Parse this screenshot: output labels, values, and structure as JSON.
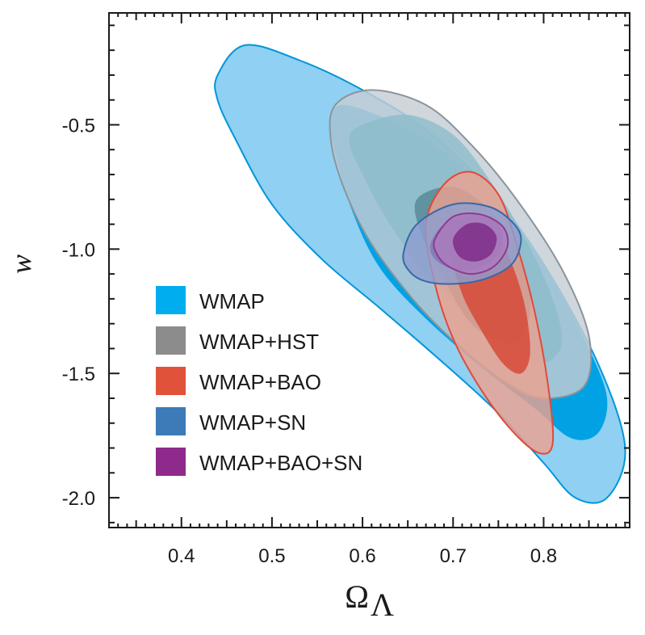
{
  "chart_data": {
    "type": "contour",
    "title": "",
    "xlabel": "Ω",
    "xlabel_subscript": "Λ",
    "ylabel": "w",
    "xlim": [
      0.32,
      0.895
    ],
    "ylim": [
      -2.12,
      -0.05
    ],
    "xticks": [
      "0.4",
      "0.5",
      "0.6",
      "0.7",
      "0.8"
    ],
    "xtick_values": [
      0.4,
      0.5,
      0.6,
      0.7,
      0.8
    ],
    "yticks": [
      "-0.5",
      "-1.0",
      "-1.5",
      "-2.0"
    ],
    "ytick_values": [
      -0.5,
      -1.0,
      -1.5,
      -2.0
    ],
    "legend_position": "lower-left",
    "series": [
      {
        "name": "WMAP",
        "swatch": "#00aeef",
        "outer_color": "#8fd0f3",
        "inner_color": "#00a2e3",
        "stroke": "#0096d8",
        "outer": [
          [
            0.44,
            -0.3
          ],
          [
            0.47,
            -0.18
          ],
          [
            0.53,
            -0.24
          ],
          [
            0.6,
            -0.36
          ],
          [
            0.67,
            -0.52
          ],
          [
            0.74,
            -0.76
          ],
          [
            0.8,
            -1.06
          ],
          [
            0.86,
            -1.46
          ],
          [
            0.89,
            -1.8
          ],
          [
            0.87,
            -2.0
          ],
          [
            0.835,
            -2.0
          ],
          [
            0.8,
            -1.86
          ],
          [
            0.75,
            -1.66
          ],
          [
            0.69,
            -1.46
          ],
          [
            0.62,
            -1.24
          ],
          [
            0.555,
            -1.04
          ],
          [
            0.5,
            -0.82
          ],
          [
            0.46,
            -0.56
          ],
          [
            0.44,
            -0.4
          ]
        ],
        "inner": [
          [
            0.58,
            -0.42
          ],
          [
            0.64,
            -0.5
          ],
          [
            0.7,
            -0.64
          ],
          [
            0.76,
            -0.86
          ],
          [
            0.81,
            -1.12
          ],
          [
            0.85,
            -1.4
          ],
          [
            0.87,
            -1.6
          ],
          [
            0.86,
            -1.74
          ],
          [
            0.83,
            -1.76
          ],
          [
            0.79,
            -1.64
          ],
          [
            0.73,
            -1.47
          ],
          [
            0.67,
            -1.28
          ],
          [
            0.62,
            -1.08
          ],
          [
            0.59,
            -0.86
          ],
          [
            0.57,
            -0.62
          ],
          [
            0.565,
            -0.48
          ]
        ]
      },
      {
        "name": "WMAP+HST",
        "swatch": "#8c8c8c",
        "outer_color": "#c4cdd4",
        "inner_color": "#8dbcca",
        "stroke": "#8b949c",
        "outer": [
          [
            0.57,
            -0.42
          ],
          [
            0.61,
            -0.36
          ],
          [
            0.67,
            -0.42
          ],
          [
            0.72,
            -0.58
          ],
          [
            0.77,
            -0.8
          ],
          [
            0.82,
            -1.08
          ],
          [
            0.85,
            -1.35
          ],
          [
            0.845,
            -1.55
          ],
          [
            0.8,
            -1.6
          ],
          [
            0.76,
            -1.54
          ],
          [
            0.71,
            -1.4
          ],
          [
            0.66,
            -1.22
          ],
          [
            0.61,
            -0.98
          ],
          [
            0.58,
            -0.76
          ],
          [
            0.565,
            -0.56
          ]
        ],
        "inner": [
          [
            0.6,
            -0.5
          ],
          [
            0.65,
            -0.46
          ],
          [
            0.7,
            -0.54
          ],
          [
            0.74,
            -0.72
          ],
          [
            0.78,
            -0.96
          ],
          [
            0.81,
            -1.2
          ],
          [
            0.82,
            -1.38
          ],
          [
            0.8,
            -1.46
          ],
          [
            0.77,
            -1.42
          ],
          [
            0.72,
            -1.28
          ],
          [
            0.67,
            -1.1
          ],
          [
            0.63,
            -0.9
          ],
          [
            0.6,
            -0.7
          ],
          [
            0.585,
            -0.56
          ]
        ],
        "core_color": "#5b8d9b",
        "core": [
          [
            0.66,
            -0.8
          ],
          [
            0.7,
            -0.75
          ],
          [
            0.74,
            -0.84
          ],
          [
            0.77,
            -1.0
          ],
          [
            0.785,
            -1.18
          ],
          [
            0.78,
            -1.33
          ],
          [
            0.76,
            -1.38
          ],
          [
            0.72,
            -1.3
          ],
          [
            0.69,
            -1.12
          ],
          [
            0.665,
            -0.94
          ]
        ]
      },
      {
        "name": "WMAP+BAO",
        "swatch": "#e0533a",
        "outer_color": "#eba190",
        "inner_color": "#d74634",
        "stroke": "#e04a39",
        "outer": [
          [
            0.67,
            -0.9
          ],
          [
            0.69,
            -0.74
          ],
          [
            0.72,
            -0.69
          ],
          [
            0.75,
            -0.78
          ],
          [
            0.77,
            -0.98
          ],
          [
            0.79,
            -1.25
          ],
          [
            0.805,
            -1.55
          ],
          [
            0.81,
            -1.78
          ],
          [
            0.795,
            -1.82
          ],
          [
            0.765,
            -1.73
          ],
          [
            0.73,
            -1.56
          ],
          [
            0.7,
            -1.36
          ],
          [
            0.68,
            -1.14
          ]
        ],
        "inner": [
          [
            0.7,
            -1.02
          ],
          [
            0.72,
            -0.9
          ],
          [
            0.745,
            -0.92
          ],
          [
            0.765,
            -1.06
          ],
          [
            0.78,
            -1.24
          ],
          [
            0.785,
            -1.42
          ],
          [
            0.775,
            -1.5
          ],
          [
            0.755,
            -1.46
          ],
          [
            0.73,
            -1.32
          ],
          [
            0.71,
            -1.18
          ]
        ]
      },
      {
        "name": "WMAP+SN",
        "swatch": "#3d7ab8",
        "outer_color": "#8f9dd0",
        "inner_color": "#7f78b7",
        "stroke": "#3868a8",
        "outer": [
          [
            0.645,
            -1.02
          ],
          [
            0.66,
            -0.9
          ],
          [
            0.7,
            -0.82
          ],
          [
            0.74,
            -0.83
          ],
          [
            0.765,
            -0.89
          ],
          [
            0.775,
            -0.96
          ],
          [
            0.765,
            -1.06
          ],
          [
            0.735,
            -1.12
          ],
          [
            0.7,
            -1.14
          ],
          [
            0.67,
            -1.13
          ],
          [
            0.652,
            -1.09
          ]
        ],
        "inner": [
          [
            0.675,
            -0.98
          ],
          [
            0.69,
            -0.9
          ],
          [
            0.72,
            -0.86
          ],
          [
            0.745,
            -0.88
          ],
          [
            0.755,
            -0.95
          ],
          [
            0.748,
            -1.03
          ],
          [
            0.725,
            -1.08
          ],
          [
            0.7,
            -1.08
          ],
          [
            0.68,
            -1.04
          ]
        ]
      },
      {
        "name": "WMAP+BAO+SN",
        "swatch": "#8e2a8c",
        "outer_color": "#ad7bbd",
        "inner_color": "#7e2a85",
        "stroke": "#8e3a94",
        "outer": [
          [
            0.68,
            -0.96
          ],
          [
            0.7,
            -0.87
          ],
          [
            0.73,
            -0.86
          ],
          [
            0.755,
            -0.91
          ],
          [
            0.76,
            -0.99
          ],
          [
            0.745,
            -1.07
          ],
          [
            0.72,
            -1.1
          ],
          [
            0.695,
            -1.07
          ],
          [
            0.682,
            -1.02
          ]
        ],
        "inner": [
          [
            0.7,
            -0.96
          ],
          [
            0.715,
            -0.9
          ],
          [
            0.735,
            -0.9
          ],
          [
            0.748,
            -0.95
          ],
          [
            0.742,
            -1.02
          ],
          [
            0.725,
            -1.05
          ],
          [
            0.707,
            -1.03
          ]
        ]
      }
    ]
  }
}
